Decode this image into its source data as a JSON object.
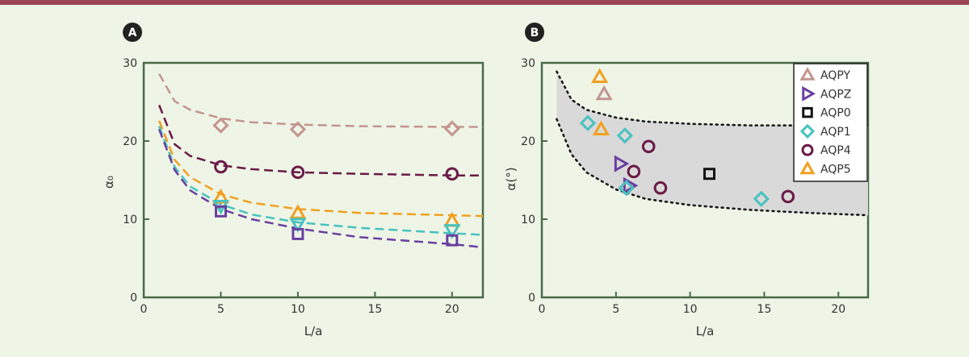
{
  "colors": {
    "background": "#eef5e6",
    "top_bar": "#9b4655",
    "axis": "#4a6a4a",
    "band": "#d9d9d9",
    "AQPY": "#c4958f",
    "AQPZ": "#6a3fa0",
    "AQP0": "#111111",
    "AQP1": "#48c2c0",
    "AQP4": "#6a1a47",
    "AQP5": "#f0a020"
  },
  "chart_data": [
    {
      "panel": "A",
      "type": "scatter",
      "xlabel": "L/a",
      "ylabel": "α₀",
      "xlim": [
        0,
        22
      ],
      "ylim": [
        0,
        30
      ],
      "xticks": [
        0,
        5,
        10,
        15,
        20
      ],
      "yticks": [
        0,
        10,
        20,
        30
      ],
      "grid": false,
      "series": [
        {
          "name": "AQPY",
          "marker": "diamond",
          "x": [
            5,
            10,
            20
          ],
          "y": [
            22,
            21.5,
            21.6
          ],
          "fit": [
            [
              1,
              28.6
            ],
            [
              2,
              25.1
            ],
            [
              3,
              24.0
            ],
            [
              5,
              22.9
            ],
            [
              7,
              22.4
            ],
            [
              10,
              22.1
            ],
            [
              14,
              21.9
            ],
            [
              20,
              21.8
            ],
            [
              22,
              21.8
            ]
          ]
        },
        {
          "name": "AQP4",
          "marker": "circle",
          "x": [
            5,
            10,
            20
          ],
          "y": [
            16.7,
            16,
            15.8
          ],
          "fit": [
            [
              1,
              24.6
            ],
            [
              2,
              19.6
            ],
            [
              3,
              18.1
            ],
            [
              5,
              16.9
            ],
            [
              7,
              16.4
            ],
            [
              10,
              16.0
            ],
            [
              14,
              15.8
            ],
            [
              20,
              15.6
            ],
            [
              22,
              15.6
            ]
          ]
        },
        {
          "name": "AQP5",
          "marker": "triangle-up",
          "x": [
            5,
            10,
            20
          ],
          "y": [
            12.8,
            10.8,
            9.8
          ],
          "fit": [
            [
              1,
              22.6
            ],
            [
              2,
              17.6
            ],
            [
              3,
              15.4
            ],
            [
              5,
              13.2
            ],
            [
              7,
              12.1
            ],
            [
              10,
              11.3
            ],
            [
              14,
              10.8
            ],
            [
              20,
              10.5
            ],
            [
              22,
              10.4
            ]
          ]
        },
        {
          "name": "AQP1",
          "marker": "triangle-down",
          "x": [
            5,
            10,
            20
          ],
          "y": [
            11.7,
            9.4,
            8.6
          ],
          "fit": [
            [
              1,
              21.9
            ],
            [
              2,
              16.7
            ],
            [
              3,
              14.2
            ],
            [
              5,
              11.9
            ],
            [
              7,
              10.6
            ],
            [
              10,
              9.6
            ],
            [
              14,
              8.9
            ],
            [
              20,
              8.2
            ],
            [
              22,
              8.0
            ]
          ]
        },
        {
          "name": "AQPZ",
          "marker": "square",
          "x": [
            5,
            10,
            20
          ],
          "y": [
            11,
            8.1,
            7.3
          ],
          "fit": [
            [
              1,
              21.5
            ],
            [
              2,
              16.3
            ],
            [
              3,
              13.7
            ],
            [
              5,
              11.3
            ],
            [
              7,
              10.0
            ],
            [
              10,
              8.8
            ],
            [
              14,
              7.7
            ],
            [
              20,
              6.8
            ],
            [
              22,
              6.4
            ]
          ]
        }
      ]
    },
    {
      "panel": "B",
      "type": "scatter",
      "xlabel": "L/a",
      "ylabel": "α(°)",
      "xlim": [
        0,
        22
      ],
      "ylim": [
        0,
        30
      ],
      "xticks": [
        0,
        5,
        10,
        15,
        20
      ],
      "yticks": [
        0,
        10,
        20,
        30
      ],
      "grid": false,
      "legend_position": "top-right",
      "band_upper": [
        [
          1,
          28.9
        ],
        [
          2,
          25.3
        ],
        [
          3,
          24.0
        ],
        [
          5,
          23.0
        ],
        [
          7,
          22.5
        ],
        [
          10,
          22.2
        ],
        [
          14,
          22.0
        ],
        [
          18,
          22.0
        ],
        [
          22,
          21.9
        ]
      ],
      "band_lower": [
        [
          1,
          22.8
        ],
        [
          2,
          18.3
        ],
        [
          3,
          16.0
        ],
        [
          5,
          13.8
        ],
        [
          7,
          12.6
        ],
        [
          10,
          11.8
        ],
        [
          14,
          11.2
        ],
        [
          18,
          10.8
        ],
        [
          22,
          10.5
        ]
      ],
      "series": [
        {
          "name": "AQPY",
          "marker": "triangle-up",
          "x": [
            4.2
          ],
          "y": [
            26
          ]
        },
        {
          "name": "AQPZ",
          "marker": "triangle-right",
          "x": [
            5.3,
            5.9
          ],
          "y": [
            17.1,
            14.3
          ]
        },
        {
          "name": "AQP0",
          "marker": "square",
          "x": [
            11.3
          ],
          "y": [
            15.8
          ]
        },
        {
          "name": "AQP1",
          "marker": "diamond",
          "x": [
            3.1,
            5.6,
            5.7,
            14.8
          ],
          "y": [
            22.3,
            20.7,
            14,
            12.6
          ]
        },
        {
          "name": "AQP4",
          "marker": "circle",
          "x": [
            6.2,
            7.2,
            8,
            16.6
          ],
          "y": [
            16.1,
            19.3,
            14,
            12.9
          ]
        },
        {
          "name": "AQP5",
          "marker": "triangle-up",
          "x": [
            3.9,
            4
          ],
          "y": [
            28.2,
            21.5
          ]
        }
      ],
      "legend": [
        "AQPY",
        "AQPZ",
        "AQP0",
        "AQP1",
        "AQP4",
        "AQP5"
      ]
    }
  ]
}
